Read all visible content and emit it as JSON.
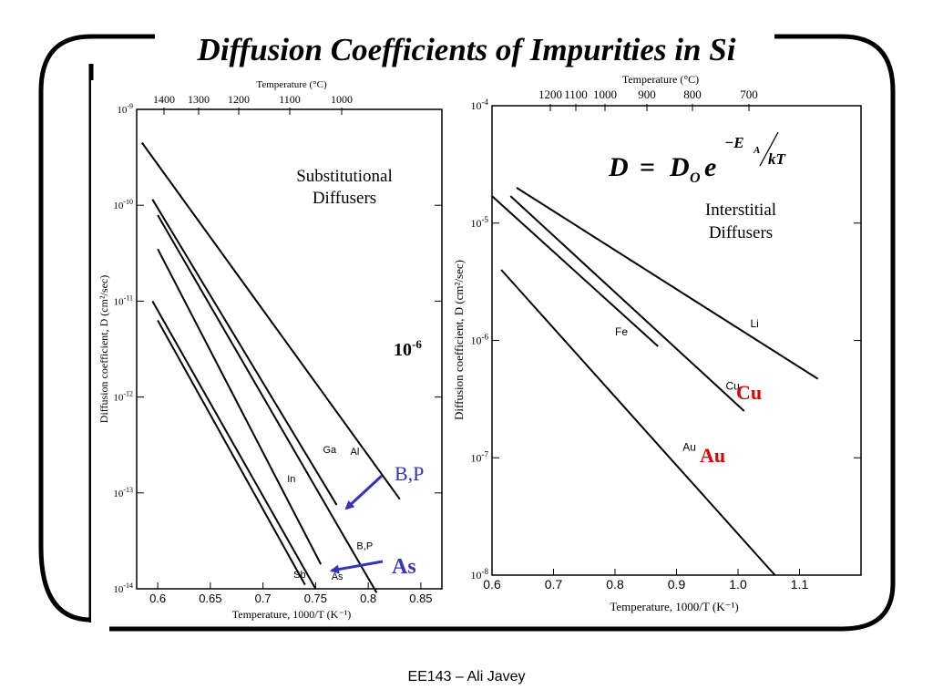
{
  "slide": {
    "title": "Diffusion Coefficients of Impurities in Si",
    "footer": "EE143 – Ali Javey",
    "equation": {
      "D": "D",
      "eq": "=",
      "D_sub_base": "D",
      "D_sub": "O",
      "e": "e",
      "exp_neg_E": "−E",
      "exp_A": "A",
      "exp_kT": "kT"
    }
  },
  "chart_data": [
    {
      "type": "line",
      "title": "",
      "xlabel": "Temperature, 1000/T (K⁻¹)",
      "ylabel": "Diffusion coefficient, D (cm²/sec)",
      "top_axis_label": "Temperature (°C)",
      "top_ticks": [
        "1400",
        "1300",
        "1200",
        "1100",
        "1000"
      ],
      "xlim": [
        0.58,
        0.87
      ],
      "ylim_log10": [
        -14,
        -9
      ],
      "y_scale": "log",
      "x_ticks": [
        "0.6",
        "0.65",
        "0.7",
        "0.75",
        "0.8",
        "0.85"
      ],
      "y_ticks": [
        "10-14",
        "10-13",
        "10-12",
        "10-11",
        "10-10",
        "10-9"
      ],
      "panel_label": "Substitutional Diffusers",
      "series": [
        {
          "name": "Al",
          "x": [
            0.585,
            0.83
          ],
          "y": [
            4.5e-10,
            8.6e-14
          ]
        },
        {
          "name": "Ga",
          "x": [
            0.595,
            0.77
          ],
          "y": [
            1.15e-10,
            7.5e-14
          ]
        },
        {
          "name": "B,P",
          "x": [
            0.6,
            0.808
          ],
          "y": [
            7.9e-11,
            9.1e-15
          ]
        },
        {
          "name": "In",
          "x": [
            0.6,
            0.755
          ],
          "y": [
            3.5e-11,
            1.8e-14
          ]
        },
        {
          "name": "As",
          "x": [
            0.595,
            0.75
          ],
          "y": [
            1e-11,
            1e-14
          ]
        },
        {
          "name": "Sb",
          "x": [
            0.6,
            0.74
          ],
          "y": [
            6.3e-12,
            1.1e-14
          ]
        }
      ],
      "annotations": [
        {
          "text": "Ga",
          "x": 0.757,
          "y": 2.6e-13
        },
        {
          "text": "Al",
          "x": 0.783,
          "y": 2.5e-13
        },
        {
          "text": "In",
          "x": 0.723,
          "y": 1.3e-13
        },
        {
          "text": "B,P",
          "x": 0.789,
          "y": 2.6e-14
        },
        {
          "text": "Sb",
          "x": 0.729,
          "y": 1.3e-14
        },
        {
          "text": "As",
          "x": 0.765,
          "y": 1.25e-14
        }
      ],
      "overlay_labels": {
        "exponent_note_base": "10",
        "exponent_note_sup": "-6",
        "bp": "B,P",
        "as": "As"
      },
      "overlay_color": "#3333bb"
    },
    {
      "type": "line",
      "title": "",
      "xlabel": "Temperature, 1000/T (K⁻¹)",
      "ylabel": "Diffusion coefficient, D (cm²/sec)",
      "top_axis_label": "Temperature (°C)",
      "top_ticks": [
        "1200",
        "1100",
        "1000",
        "900",
        "800",
        "700"
      ],
      "xlim": [
        0.6,
        1.2
      ],
      "ylim_log10": [
        -8,
        -4
      ],
      "y_scale": "log",
      "x_ticks": [
        "0.6",
        "0.7",
        "0.8",
        "0.9",
        "1.0",
        "1.1"
      ],
      "y_ticks": [
        "10-8",
        "10-7",
        "10-6",
        "10-5",
        "10-4"
      ],
      "panel_label": "Interstitial Diffusers",
      "series": [
        {
          "name": "Li",
          "x": [
            0.64,
            1.13
          ],
          "y": [
            2e-05,
            4.7e-07
          ]
        },
        {
          "name": "Cu",
          "x": [
            0.63,
            1.01
          ],
          "y": [
            1.7e-05,
            2.5e-07
          ]
        },
        {
          "name": "Fe",
          "x": [
            0.6,
            0.87
          ],
          "y": [
            1.7e-05,
            8.9e-07
          ]
        },
        {
          "name": "Au",
          "x": [
            0.615,
            1.06
          ],
          "y": [
            4e-06,
            1e-08
          ]
        }
      ],
      "annotations": [
        {
          "text": "Li",
          "x": 1.02,
          "y": 1.3e-06
        },
        {
          "text": "Cu",
          "x": 0.98,
          "y": 3.8e-07
        },
        {
          "text": "Fe",
          "x": 0.8,
          "y": 1.1e-06
        },
        {
          "text": "Au",
          "x": 0.91,
          "y": 1.15e-07
        }
      ],
      "overlay_labels": {
        "cu": "Cu",
        "au": "Au"
      },
      "overlay_color": "#dd0000"
    }
  ]
}
